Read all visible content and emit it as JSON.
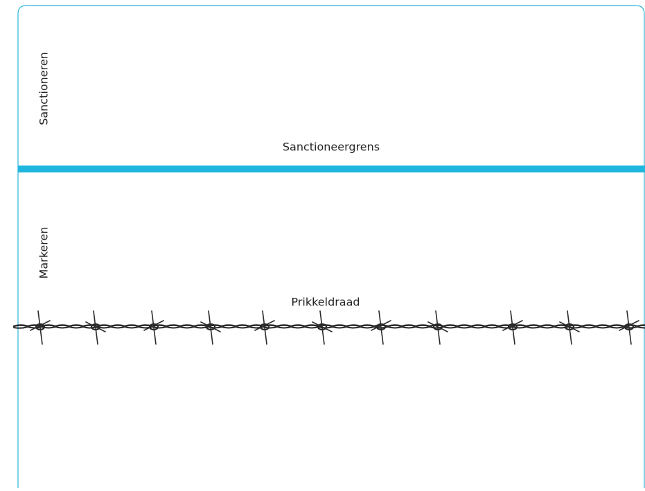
{
  "labels": {
    "upper_zone": "Sanctioneren",
    "upper_line": "Sanctioneergrens",
    "lower_zone": "Markeren",
    "lower_line": "Prikkeldraad"
  }
}
